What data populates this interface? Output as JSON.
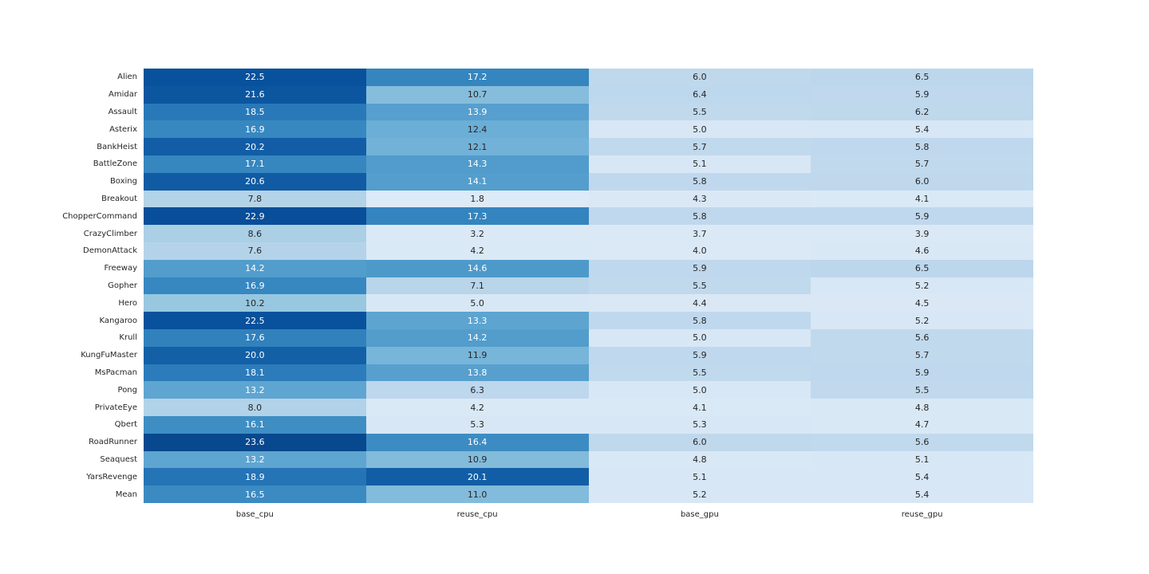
{
  "figure": {
    "background": "#ffffff"
  },
  "chart_data": {
    "type": "heatmap",
    "title": "",
    "xlabel": "",
    "ylabel": "",
    "grid": false,
    "legend": "none (no colorbar shown)",
    "value_format": "one-decimal",
    "columns": [
      "base_cpu",
      "reuse_cpu",
      "base_gpu",
      "reuse_gpu"
    ],
    "rows": [
      "Alien",
      "Amidar",
      "Assault",
      "Asterix",
      "BankHeist",
      "BattleZone",
      "Boxing",
      "Breakout",
      "ChopperCommand",
      "CrazyClimber",
      "DemonAttack",
      "Freeway",
      "Gopher",
      "Hero",
      "Kangaroo",
      "Krull",
      "KungFuMaster",
      "MsPacman",
      "Pong",
      "PrivateEye",
      "Qbert",
      "RoadRunner",
      "Seaquest",
      "YarsRevenge",
      "Mean"
    ],
    "values": [
      [
        22.5,
        17.2,
        6.0,
        6.5
      ],
      [
        21.6,
        10.7,
        6.4,
        5.9
      ],
      [
        18.5,
        13.9,
        5.5,
        6.2
      ],
      [
        16.9,
        12.4,
        5.0,
        5.4
      ],
      [
        20.2,
        12.1,
        5.7,
        5.8
      ],
      [
        17.1,
        14.3,
        5.1,
        5.7
      ],
      [
        20.6,
        14.1,
        5.8,
        6.0
      ],
      [
        7.8,
        1.8,
        4.3,
        4.1
      ],
      [
        22.9,
        17.3,
        5.8,
        5.9
      ],
      [
        8.6,
        3.2,
        3.7,
        3.9
      ],
      [
        7.6,
        4.2,
        4.0,
        4.6
      ],
      [
        14.2,
        14.6,
        5.9,
        6.5
      ],
      [
        16.9,
        7.1,
        5.5,
        5.2
      ],
      [
        10.2,
        5.0,
        4.4,
        4.5
      ],
      [
        22.5,
        13.3,
        5.8,
        5.2
      ],
      [
        17.6,
        14.2,
        5.0,
        5.6
      ],
      [
        20.0,
        11.9,
        5.9,
        5.7
      ],
      [
        18.1,
        13.8,
        5.5,
        5.9
      ],
      [
        13.2,
        6.3,
        5.0,
        5.5
      ],
      [
        8.0,
        4.2,
        4.1,
        4.8
      ],
      [
        16.1,
        5.3,
        5.3,
        4.7
      ],
      [
        23.6,
        16.4,
        6.0,
        5.6
      ],
      [
        13.2,
        10.9,
        4.8,
        5.1
      ],
      [
        18.9,
        20.1,
        5.1,
        5.4
      ],
      [
        16.5,
        11.0,
        5.2,
        5.4
      ]
    ],
    "colormap": {
      "name": "Blues",
      "stops": [
        "#f7fbff",
        "#deebf7",
        "#c6dbef",
        "#9ecae1",
        "#6baed6",
        "#4292c6",
        "#2171b5",
        "#08519c",
        "#08306b"
      ],
      "calibration": [
        [
          1.8,
          0.13
        ],
        [
          4.3,
          0.145
        ],
        [
          5.4,
          0.16
        ],
        [
          5.5,
          0.265
        ],
        [
          6.5,
          0.28
        ],
        [
          8.0,
          0.315
        ],
        [
          8.6,
          0.335
        ],
        [
          10.2,
          0.39
        ],
        [
          10.7,
          0.435
        ],
        [
          11.9,
          0.47
        ],
        [
          12.4,
          0.5
        ],
        [
          13.2,
          0.54
        ],
        [
          14.6,
          0.59
        ],
        [
          16.1,
          0.64
        ],
        [
          16.9,
          0.665
        ],
        [
          17.6,
          0.69
        ],
        [
          18.5,
          0.72
        ],
        [
          18.9,
          0.74
        ],
        [
          20.1,
          0.825
        ],
        [
          21.6,
          0.855
        ],
        [
          22.5,
          0.875
        ],
        [
          22.9,
          0.885
        ],
        [
          23.6,
          0.91
        ]
      ],
      "white_text_threshold_t": 0.52,
      "dark_text_color": "#262626",
      "light_text_color": "#ffffff"
    }
  }
}
